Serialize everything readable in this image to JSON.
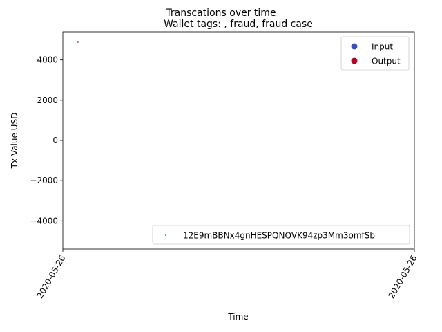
{
  "chart_data": {
    "type": "scatter",
    "suptitle": "Transcations over time",
    "title": "Wallet tags: , fraud, fraud case",
    "xlabel": "Time",
    "ylabel": "Tx Value USD",
    "ylim": [
      -5400,
      5400
    ],
    "y_ticks": [
      -4000,
      -2000,
      0,
      2000,
      4000
    ],
    "y_tick_labels": [
      "−4000",
      "−2000",
      "0",
      "2000",
      "4000"
    ],
    "x_tick_labels": [
      "2020-05-26",
      "2020-05-26"
    ],
    "x_range": [
      0,
      1
    ],
    "x_ticks": [
      0,
      1
    ],
    "grid": false,
    "series": [
      {
        "name": "Output",
        "color": "#b40426",
        "points": [
          {
            "x": 0.043,
            "y": 4900
          }
        ]
      }
    ],
    "legend_type": {
      "placement": "upper right",
      "entries": [
        {
          "label": "Input",
          "color": "#3b4cc0"
        },
        {
          "label": "Output",
          "color": "#b40426"
        }
      ]
    },
    "legend_wallet": {
      "placement": "lower right",
      "entries": [
        {
          "label": "12E9mBBNx4gnHESPQNQVK94zp3Mm3omfSb",
          "color": "#1f77b4"
        }
      ]
    }
  }
}
